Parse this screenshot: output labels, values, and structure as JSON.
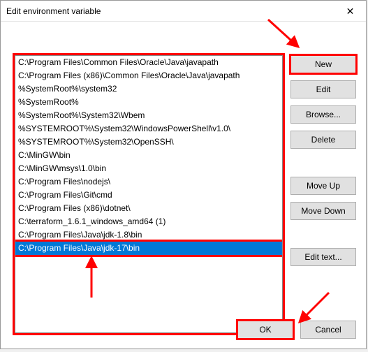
{
  "window": {
    "title": "Edit environment variable",
    "close_glyph": "✕"
  },
  "list": {
    "items": [
      "C:\\Program Files\\Common Files\\Oracle\\Java\\javapath",
      "C:\\Program Files (x86)\\Common Files\\Oracle\\Java\\javapath",
      "%SystemRoot%\\system32",
      "%SystemRoot%",
      "%SystemRoot%\\System32\\Wbem",
      "%SYSTEMROOT%\\System32\\WindowsPowerShell\\v1.0\\",
      "%SYSTEMROOT%\\System32\\OpenSSH\\",
      "C:\\MinGW\\bin",
      "C:\\MinGW\\msys\\1.0\\bin",
      "C:\\Program Files\\nodejs\\",
      "C:\\Program Files\\Git\\cmd",
      "C:\\Program Files (x86)\\dotnet\\",
      "C:\\terraform_1.6.1_windows_amd64 (1)",
      "C:\\Program Files\\Java\\jdk-1.8\\bin",
      "C:\\Program Files\\Java\\jdk-17\\bin"
    ],
    "selected_index": 14
  },
  "buttons": {
    "new": "New",
    "edit": "Edit",
    "browse": "Browse...",
    "delete": "Delete",
    "move_up": "Move Up",
    "move_down": "Move Down",
    "edit_text": "Edit text...",
    "ok": "OK",
    "cancel": "Cancel"
  },
  "annotations": {
    "arrow_color": "#ff0000",
    "highlight_color": "#ff0000"
  }
}
